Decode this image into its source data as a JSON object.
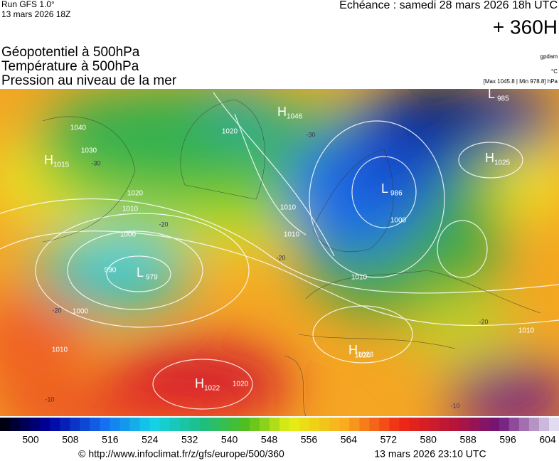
{
  "header": {
    "run": "Run GFS 1.0°",
    "init": "13 mars 2026 18Z",
    "echeance": "Echéance : samedi 28 mars 2026 18h UTC",
    "lead": "+ 360H"
  },
  "titles": [
    "Géopotentiel à 500hPa",
    "Température à 500hPa",
    "Pression au niveau de la mer"
  ],
  "units": [
    "gpdam",
    "°C",
    "[Max 1045.8 | Min 978.8] hPa"
  ],
  "centers": [
    {
      "letter": "H",
      "pressure": 1046
    },
    {
      "letter": "L",
      "pressure": 985
    },
    {
      "letter": "H",
      "pressure": 1025
    },
    {
      "letter": "L",
      "pressure": 986
    },
    {
      "letter": "H",
      "pressure": 1015
    },
    {
      "letter": "L",
      "pressure": 979
    },
    {
      "letter": "H",
      "pressure": 1023
    },
    {
      "letter": "H",
      "pressure": 1022
    }
  ],
  "isobar_labels": [
    1040,
    1030,
    1020,
    1020,
    1010,
    1000,
    990,
    1000,
    1010,
    1020,
    1010,
    1010,
    1020,
    1010,
    1000,
    1010
  ],
  "temp_labels": [
    -30,
    -30,
    -20,
    -20,
    -20,
    -20,
    -10,
    -10
  ],
  "colorbar": [
    500,
    508,
    516,
    524,
    532,
    540,
    548,
    556,
    564,
    572,
    580,
    588,
    596,
    604
  ],
  "footer": {
    "source": "© http://www.infoclimat.fr/z/gfs/europe/500/360",
    "date": "13 mars 2026 23:10 UTC"
  }
}
